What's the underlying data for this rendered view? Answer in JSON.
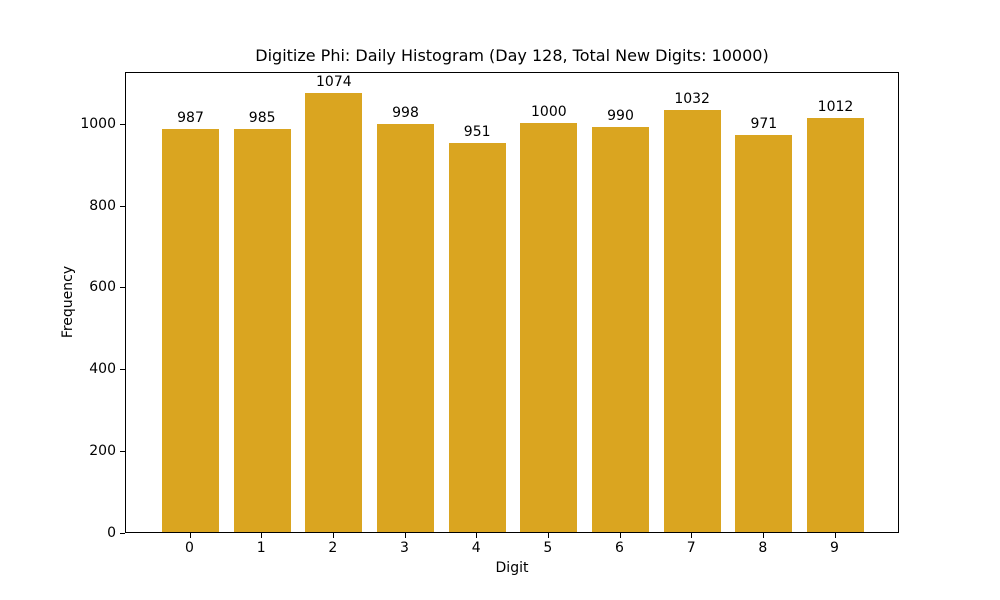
{
  "chart_data": {
    "type": "bar",
    "title": "Digitize Phi: Daily Histogram (Day 128, Total New Digits: 10000)",
    "xlabel": "Digit",
    "ylabel": "Frequency",
    "categories": [
      "0",
      "1",
      "2",
      "3",
      "4",
      "5",
      "6",
      "7",
      "8",
      "9"
    ],
    "values": [
      987,
      985,
      1074,
      998,
      951,
      1000,
      990,
      1032,
      971,
      1012
    ],
    "bar_labels": [
      "987",
      "985",
      "1074",
      "998",
      "951",
      "1000",
      "990",
      "1032",
      "971",
      "1012"
    ],
    "yticks": [
      0,
      200,
      400,
      600,
      800,
      1000
    ],
    "ylim": [
      0,
      1128
    ],
    "xlim": [
      -0.9,
      9.9
    ],
    "bar_width": 0.8,
    "bar_color": "#DAA520",
    "background_color": "#ffffff",
    "text_color": "#000000",
    "grid": false,
    "legend": null
  }
}
